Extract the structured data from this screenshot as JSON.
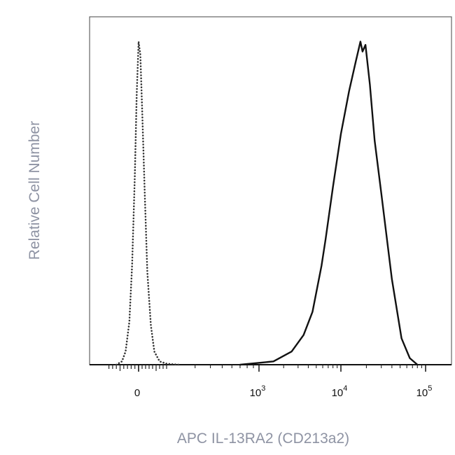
{
  "chart_data": {
    "type": "area",
    "xlabel": "APC IL-13RA2 (CD213a2)",
    "ylabel": "Relative Cell Number",
    "x_scale": "biexponential",
    "x_ticks": [
      {
        "value": 0,
        "base": "0",
        "exp": ""
      },
      {
        "value": 1000,
        "base": "10",
        "exp": "3"
      },
      {
        "value": 10000,
        "base": "10",
        "exp": "4"
      },
      {
        "value": 100000,
        "base": "10",
        "exp": "5"
      }
    ],
    "ylim": [
      0,
      1
    ],
    "grid": false,
    "series": [
      {
        "line_style": "dotted",
        "color": "#333333",
        "x": [
          -120,
          -90,
          -70,
          -50,
          -35,
          -20,
          -10,
          0,
          10,
          20,
          35,
          50,
          70,
          90,
          120,
          160,
          220
        ],
        "y": [
          0.0,
          0.01,
          0.04,
          0.13,
          0.3,
          0.58,
          0.82,
          0.98,
          0.94,
          0.78,
          0.52,
          0.28,
          0.12,
          0.04,
          0.01,
          0.003,
          0.0
        ]
      },
      {
        "line_style": "solid",
        "color": "#111111",
        "x": [
          700,
          1500,
          2500,
          3500,
          4500,
          5800,
          6500,
          8000,
          10000,
          12500,
          15000,
          17000,
          18000,
          19500,
          22000,
          25000,
          30000,
          40000,
          52000,
          65000,
          80000
        ],
        "y": [
          0.0,
          0.01,
          0.04,
          0.09,
          0.16,
          0.3,
          0.38,
          0.54,
          0.7,
          0.83,
          0.92,
          0.98,
          0.95,
          0.97,
          0.85,
          0.68,
          0.52,
          0.26,
          0.08,
          0.02,
          0.0
        ]
      }
    ]
  }
}
